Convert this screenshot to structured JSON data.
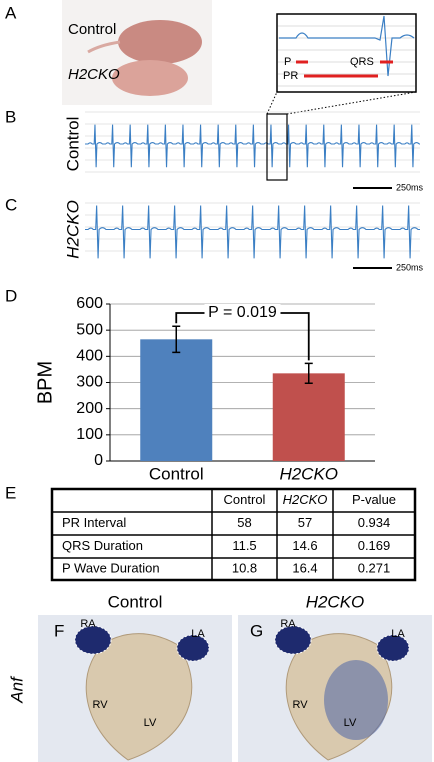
{
  "panel_labels": [
    "A",
    "B",
    "C",
    "D",
    "E",
    "F",
    "G"
  ],
  "photo": {
    "control_label": "Control",
    "mutant_label": "H2CKO"
  },
  "inset": {
    "p_label": "P",
    "qrs_label": "QRS",
    "pr_label": "PR"
  },
  "ecg": [
    {
      "label": "Control",
      "scale": "250ms"
    },
    {
      "label": "H2CKO",
      "scale": "250ms"
    }
  ],
  "chart_data": {
    "type": "bar",
    "categories": [
      "Control",
      "H2CKO"
    ],
    "values": [
      465,
      335
    ],
    "errors": [
      50,
      38
    ],
    "colors": [
      "#4f81bd",
      "#c0504d"
    ],
    "ylabel": "BPM",
    "ylim": [
      0,
      600
    ],
    "yticks": [
      0,
      100,
      200,
      300,
      400,
      500,
      600
    ],
    "grid": true,
    "annotation": "P = 0.019"
  },
  "table": {
    "columns": [
      "Control",
      "H2CKO",
      "P-value"
    ],
    "rows": [
      [
        "PR Interval",
        58,
        57,
        0.934
      ],
      [
        "QRS Duration",
        11.5,
        14.6,
        0.169
      ],
      [
        "P Wave Duration",
        10.8,
        16.4,
        0.271
      ]
    ]
  },
  "histology": {
    "gene": "Anf",
    "panels": [
      {
        "title": "Control",
        "regions": [
          "RA",
          "LA",
          "RV",
          "LV"
        ]
      },
      {
        "title": "H2CKO",
        "regions": [
          "RA",
          "LA",
          "RV",
          "LV"
        ]
      }
    ]
  }
}
